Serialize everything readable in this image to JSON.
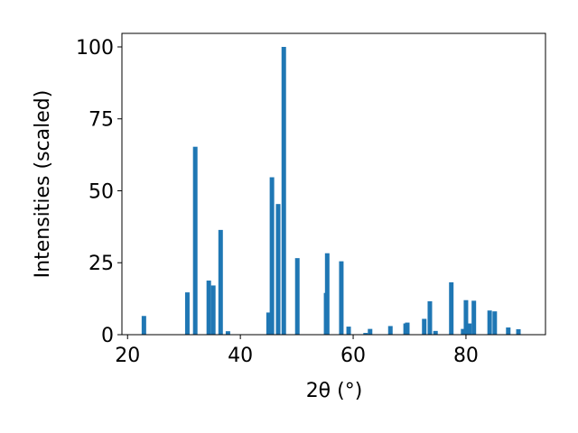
{
  "chart_data": {
    "type": "bar",
    "x_label": "2θ (°)",
    "y_label": "Intensities (scaled)",
    "color": "#1f77b4",
    "x": [
      22.9,
      30.6,
      32.0,
      34.4,
      35.2,
      36.5,
      37.8,
      45.0,
      45.6,
      46.7,
      47.7,
      50.1,
      55.2,
      55.4,
      57.9,
      59.2,
      62.2,
      63.0,
      66.6,
      69.3,
      69.6,
      72.6,
      73.6,
      74.6,
      77.4,
      79.5,
      80.0,
      80.6,
      81.4,
      84.2,
      85.1,
      87.5,
      89.3
    ],
    "values": [
      6.5,
      14.7,
      65.3,
      18.8,
      17.1,
      36.4,
      1.2,
      7.7,
      54.7,
      45.4,
      100,
      26.6,
      14.5,
      28.3,
      25.5,
      2.8,
      0.6,
      2.0,
      3.0,
      3.9,
      4.2,
      5.5,
      11.6,
      1.3,
      18.2,
      2.0,
      12.0,
      3.9,
      11.8,
      8.4,
      8.1,
      2.5,
      1.9
    ],
    "xlim": [
      19,
      94.1
    ],
    "xticks": [
      20,
      40,
      60,
      80
    ],
    "ylim": [
      0,
      104.7
    ],
    "yticks": [
      0,
      25,
      50,
      75,
      100
    ]
  }
}
